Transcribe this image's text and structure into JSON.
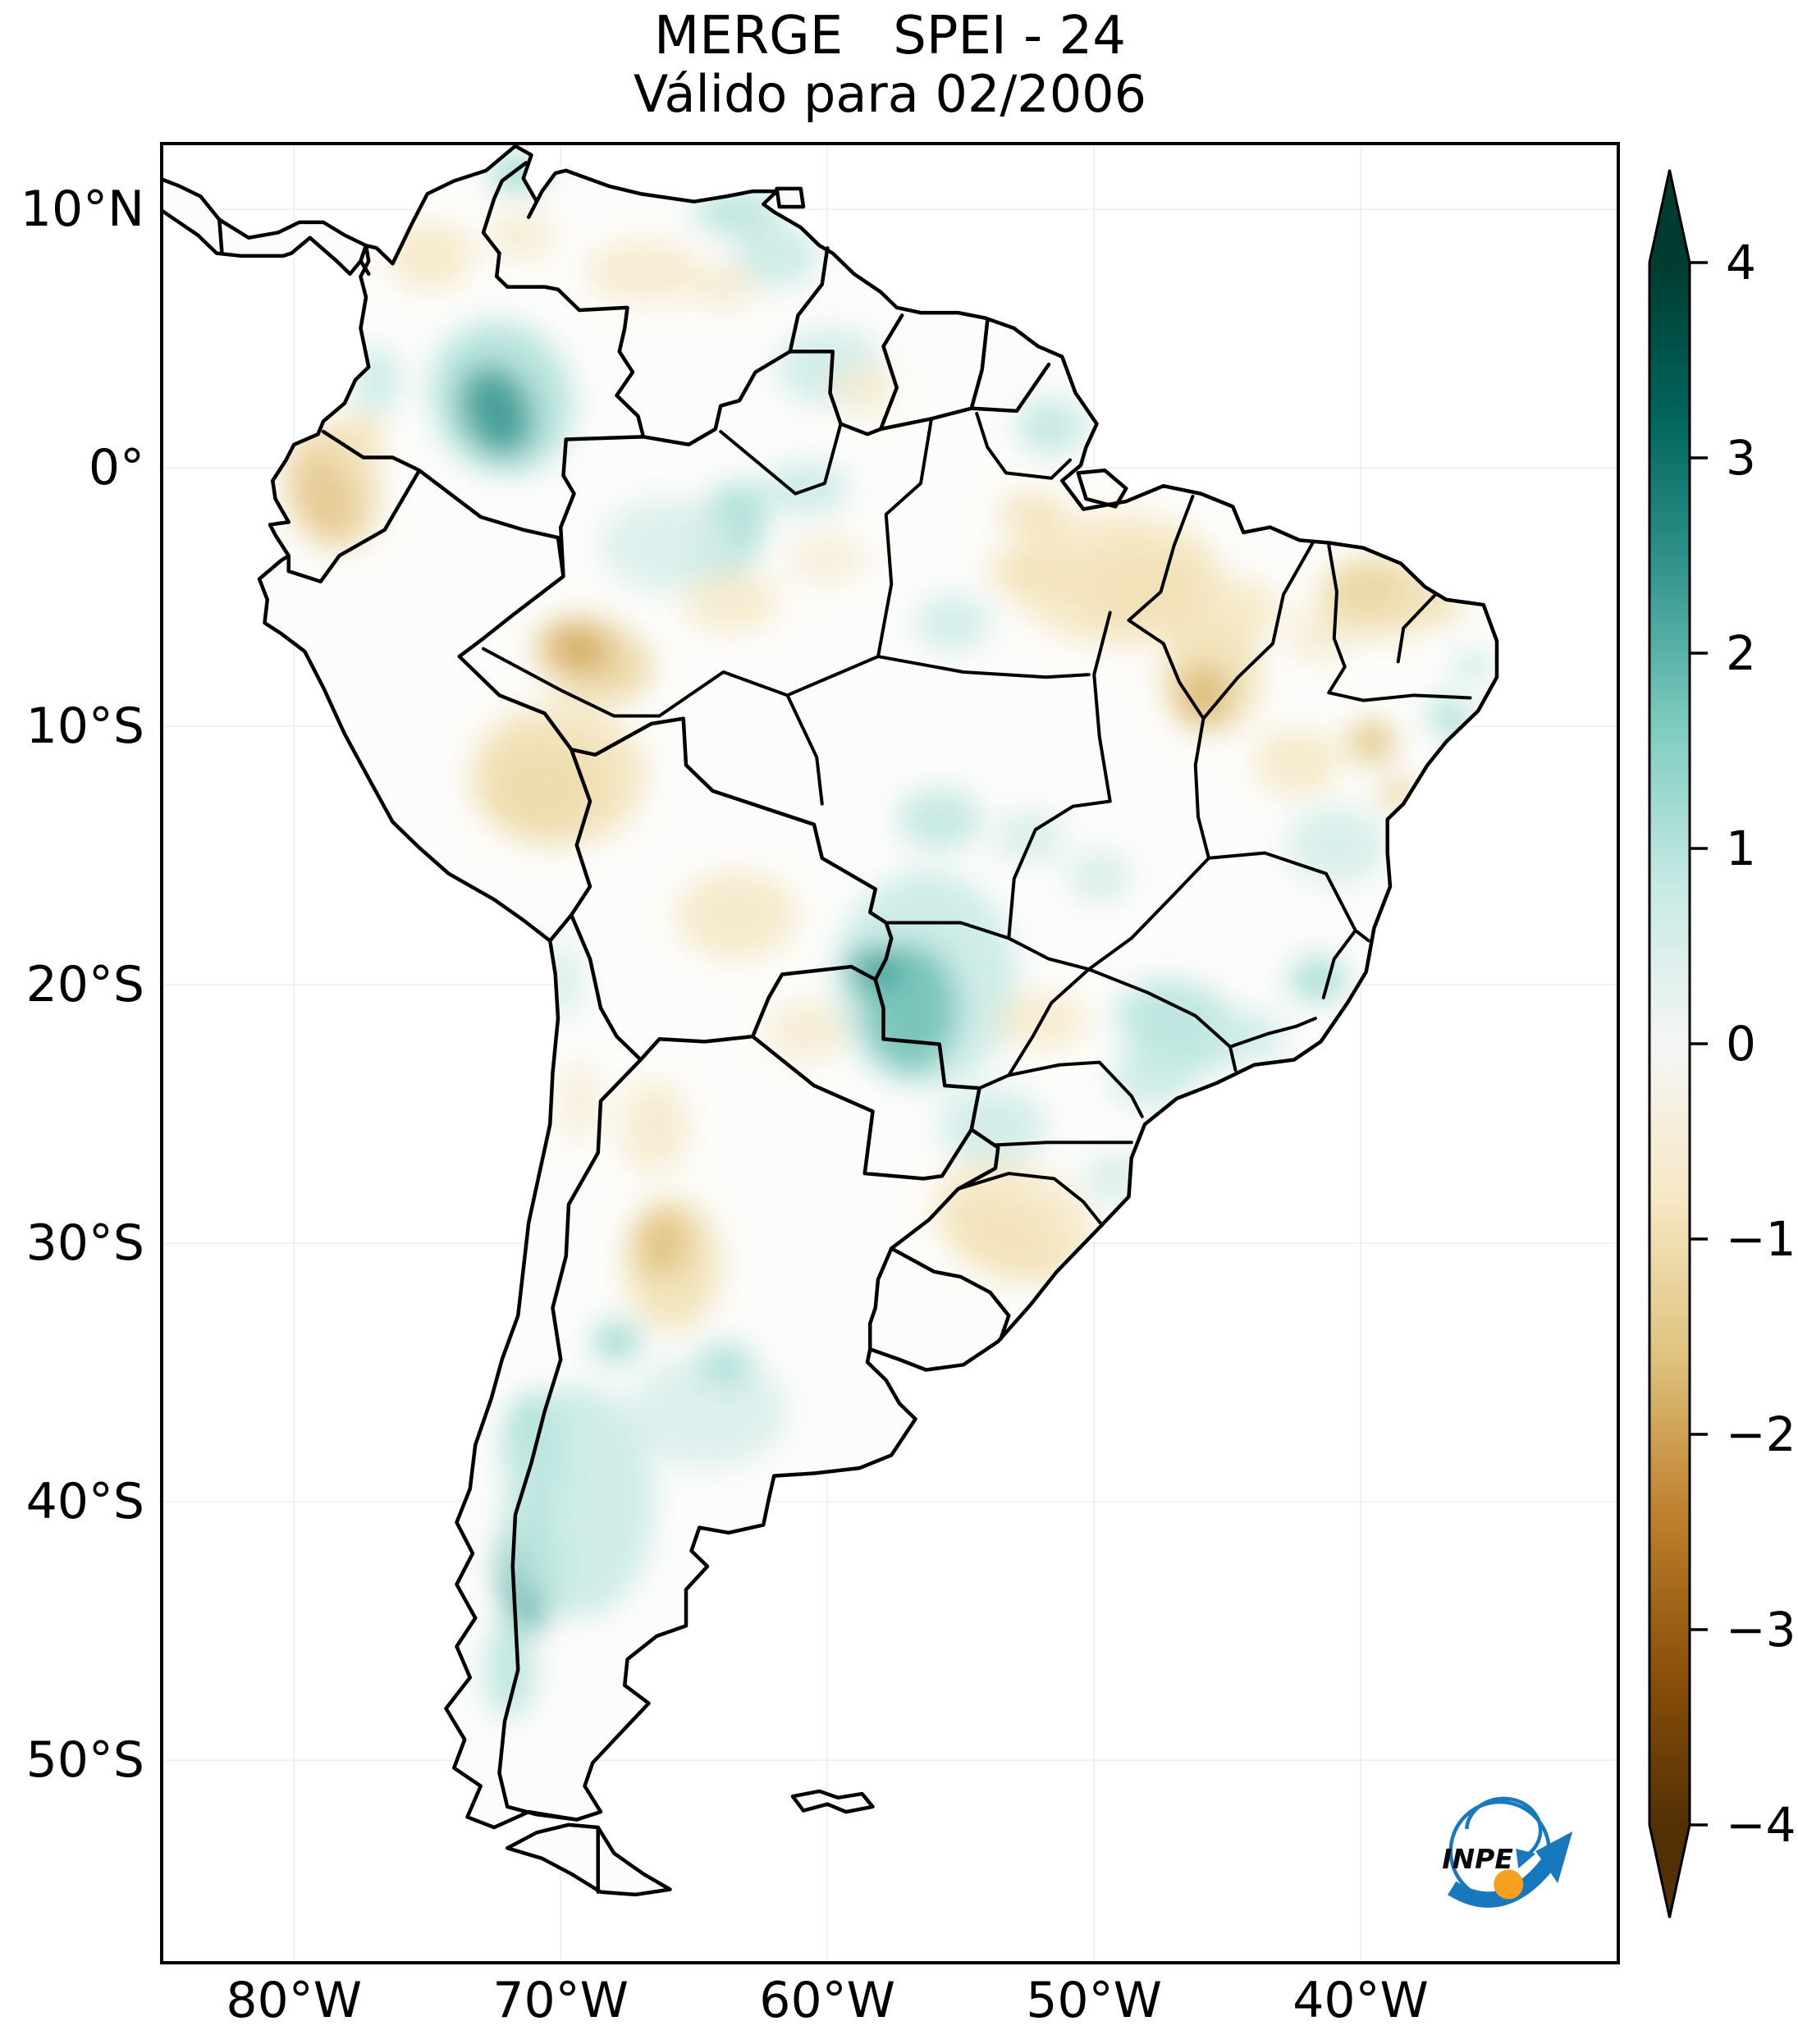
{
  "title": {
    "line1": "MERGE   SPEI - 24",
    "line2": "Válido para 02/2006"
  },
  "axes": {
    "lat_ticks": [
      {
        "label": "10°N",
        "deg": 10
      },
      {
        "label": "0°",
        "deg": 0
      },
      {
        "label": "10°S",
        "deg": -10
      },
      {
        "label": "20°S",
        "deg": -20
      },
      {
        "label": "30°S",
        "deg": -30
      },
      {
        "label": "40°S",
        "deg": -40
      },
      {
        "label": "50°S",
        "deg": -50
      }
    ],
    "lon_ticks": [
      {
        "label": "80°W",
        "deg": -80
      },
      {
        "label": "70°W",
        "deg": -70
      },
      {
        "label": "60°W",
        "deg": -60
      },
      {
        "label": "50°W",
        "deg": -50
      },
      {
        "label": "40°W",
        "deg": -40
      }
    ]
  },
  "colorbar": {
    "vmin": -4,
    "vmax": 4,
    "extend": "both",
    "colormap_name": "BrBG",
    "ticks": [
      {
        "label": "4",
        "value": 4
      },
      {
        "label": "3",
        "value": 3
      },
      {
        "label": "2",
        "value": 2
      },
      {
        "label": "1",
        "value": 1
      },
      {
        "label": "0",
        "value": 0
      },
      {
        "label": "−1",
        "value": -1
      },
      {
        "label": "−2",
        "value": -2
      },
      {
        "label": "−3",
        "value": -3
      },
      {
        "label": "−4",
        "value": -4
      }
    ],
    "stops": [
      {
        "v": -4.0,
        "c": "#543005"
      },
      {
        "v": -3.2,
        "c": "#8c510a"
      },
      {
        "v": -2.4,
        "c": "#bf812d"
      },
      {
        "v": -1.6,
        "c": "#dfc27d"
      },
      {
        "v": -0.8,
        "c": "#f6e8c3"
      },
      {
        "v": 0.0,
        "c": "#f5f5f5"
      },
      {
        "v": 0.8,
        "c": "#c7eae5"
      },
      {
        "v": 1.6,
        "c": "#80cdc1"
      },
      {
        "v": 2.4,
        "c": "#35978f"
      },
      {
        "v": 3.2,
        "c": "#01665e"
      },
      {
        "v": 4.0,
        "c": "#003c30"
      }
    ]
  },
  "logo": {
    "text": "INPE",
    "blue": "#1878be",
    "orange": "#f6a01d"
  },
  "chart_data": {
    "type": "heatmap",
    "product": "MERGE",
    "variable": "SPEI - 24",
    "valid_for": "02/2006",
    "region": "South America",
    "title": "MERGE   SPEI - 24",
    "subtitle": "Válido para 02/2006",
    "colorbar_range": [
      -4,
      4
    ],
    "extent": {
      "lon_min": -84.9,
      "lon_max": -30.4,
      "lat_min": -57.77,
      "lat_max": 12.48
    },
    "grid": true,
    "land_fill": "#fcfcfa",
    "anomalies": {
      "columns": [
        "lon",
        "lat",
        "rx_deg",
        "ry_deg",
        "rot_deg",
        "spei"
      ],
      "points": [
        [
          -71.6,
          11.4,
          1.1,
          0.7,
          0,
          1.3
        ],
        [
          -63.4,
          9.9,
          1.6,
          0.9,
          0,
          1.0
        ],
        [
          -61.9,
          8.2,
          1.6,
          1.2,
          0,
          0.8
        ],
        [
          -72.2,
          2.7,
          2.6,
          3.0,
          20,
          1.1
        ],
        [
          -72.4,
          2.2,
          1.3,
          1.8,
          20,
          2.4
        ],
        [
          -63.8,
          -2.6,
          1.3,
          2.2,
          -25,
          1.2
        ],
        [
          -60.8,
          -0.8,
          1.6,
          1.0,
          0,
          0.8
        ],
        [
          -59.9,
          3.9,
          2.0,
          1.5,
          0,
          0.7
        ],
        [
          -51.6,
          1.6,
          1.3,
          1.1,
          0,
          0.9
        ],
        [
          -56.3,
          -19.8,
          3.4,
          4.2,
          0,
          0.8
        ],
        [
          -56.9,
          -20.9,
          1.8,
          2.5,
          0,
          1.8
        ],
        [
          -58.2,
          -19.4,
          1.1,
          0.9,
          0,
          2.2
        ],
        [
          -55.8,
          -13.6,
          1.6,
          1.2,
          0,
          0.9
        ],
        [
          -52.4,
          -14.3,
          1.3,
          1.0,
          0,
          0.6
        ],
        [
          -46.8,
          -21.6,
          2.4,
          1.7,
          -20,
          1.0
        ],
        [
          -44.3,
          -22.0,
          1.5,
          1.0,
          0,
          0.7
        ],
        [
          -41.6,
          -19.8,
          1.1,
          0.9,
          0,
          1.2
        ],
        [
          -49.8,
          -15.8,
          1.2,
          1.0,
          0,
          0.6
        ],
        [
          -40.9,
          -14.6,
          1.9,
          1.5,
          0,
          0.6
        ],
        [
          -36.6,
          -9.7,
          0.9,
          0.7,
          -40,
          1.2
        ],
        [
          -35.8,
          -7.7,
          0.8,
          0.6,
          0,
          0.8
        ],
        [
          -70.9,
          -38.0,
          1.2,
          2.2,
          0,
          1.5
        ],
        [
          -71.2,
          -42.5,
          1.1,
          2.6,
          0,
          2.0
        ],
        [
          -69.3,
          -40.0,
          2.8,
          4.5,
          0,
          0.8
        ],
        [
          -71.9,
          -46.5,
          0.9,
          1.9,
          0,
          1.0
        ],
        [
          -64.5,
          -36.5,
          3.0,
          2.2,
          0,
          0.5
        ],
        [
          -67.9,
          -33.8,
          0.9,
          0.8,
          0,
          1.3
        ],
        [
          -63.8,
          -34.7,
          1.0,
          0.9,
          0,
          1.1
        ],
        [
          -76.9,
          3.4,
          0.9,
          1.3,
          0,
          0.8
        ],
        [
          -55.3,
          -6.0,
          1.4,
          1.1,
          0,
          0.7
        ],
        [
          -69.9,
          -19.8,
          0.7,
          1.5,
          0,
          0.6
        ],
        [
          -66.0,
          -3.0,
          2.5,
          1.8,
          0,
          0.5
        ],
        [
          -53.8,
          -25.5,
          2.0,
          1.5,
          0,
          0.7
        ],
        [
          -49.0,
          -27.5,
          1.5,
          1.0,
          0,
          0.5
        ],
        [
          -47.8,
          -23.6,
          1.6,
          1.1,
          0,
          0.8
        ],
        [
          -78.9,
          -1.2,
          1.0,
          1.6,
          15,
          -2.2
        ],
        [
          -78.6,
          -0.8,
          1.7,
          2.4,
          15,
          -1.2
        ],
        [
          -77.6,
          1.0,
          1.0,
          1.2,
          0,
          -0.9
        ],
        [
          -74.9,
          8.2,
          1.6,
          1.3,
          0,
          -0.8
        ],
        [
          -66.9,
          7.6,
          2.2,
          1.2,
          0,
          -0.7
        ],
        [
          -63.9,
          7.0,
          1.3,
          0.9,
          0,
          -0.6
        ],
        [
          -71.5,
          9.0,
          1.2,
          1.0,
          0,
          -0.6
        ],
        [
          -70.9,
          -12.7,
          1.5,
          1.3,
          0,
          -2.6
        ],
        [
          -70.7,
          -12.3,
          2.4,
          2.0,
          0,
          -1.6
        ],
        [
          -70.1,
          -11.9,
          3.3,
          2.8,
          0,
          -0.9
        ],
        [
          -68.8,
          -7.4,
          2.3,
          1.6,
          -20,
          -1.2
        ],
        [
          -69.3,
          -7.0,
          1.2,
          0.9,
          -20,
          -1.9
        ],
        [
          -63.6,
          -5.2,
          1.8,
          1.2,
          0,
          -0.7
        ],
        [
          -60.0,
          -3.5,
          1.5,
          1.0,
          0,
          -0.5
        ],
        [
          -47.9,
          -4.9,
          1.6,
          1.1,
          0,
          -2.4
        ],
        [
          -48.3,
          -4.6,
          2.7,
          1.8,
          0,
          -1.4
        ],
        [
          -49.1,
          -4.3,
          4.0,
          2.6,
          0,
          -0.8
        ],
        [
          -52.4,
          -4.0,
          1.6,
          1.0,
          0,
          -0.9
        ],
        [
          -45.6,
          -8.0,
          1.9,
          2.3,
          0,
          -1.0
        ],
        [
          -45.9,
          -8.8,
          1.0,
          1.2,
          0,
          -1.7
        ],
        [
          -44.5,
          -5.5,
          1.5,
          1.2,
          0,
          -0.8
        ],
        [
          -41.5,
          -6.5,
          1.2,
          1.0,
          0,
          -0.6
        ],
        [
          -39.8,
          -4.6,
          1.5,
          1.0,
          0,
          -2.0
        ],
        [
          -39.2,
          -5.0,
          2.4,
          1.6,
          0,
          -1.0
        ],
        [
          -36.9,
          -5.4,
          0.8,
          0.6,
          0,
          -1.0
        ],
        [
          -42.4,
          -11.4,
          1.6,
          1.3,
          0,
          -0.8
        ],
        [
          -39.6,
          -10.6,
          0.9,
          0.8,
          0,
          -1.6
        ],
        [
          -38.6,
          -12.6,
          0.7,
          0.6,
          0,
          -1.3
        ],
        [
          -63.4,
          -17.3,
          2.3,
          1.7,
          0,
          -0.8
        ],
        [
          -60.8,
          -21.8,
          1.5,
          1.2,
          0,
          -0.6
        ],
        [
          -65.8,
          -30.8,
          1.8,
          2.6,
          0,
          -1.0
        ],
        [
          -66.2,
          -30.0,
          1.0,
          1.3,
          0,
          -1.6
        ],
        [
          -66.5,
          -25.5,
          1.3,
          1.8,
          0,
          -0.7
        ],
        [
          -53.4,
          -29.8,
          2.2,
          1.4,
          -25,
          -1.5
        ],
        [
          -53.0,
          -29.2,
          3.2,
          2.2,
          -25,
          -0.8
        ],
        [
          -51.9,
          -21.4,
          1.7,
          1.1,
          0,
          -0.7
        ],
        [
          -52.3,
          -1.8,
          1.3,
          0.9,
          0,
          -0.9
        ],
        [
          -58.6,
          3.0,
          1.2,
          1.0,
          0,
          -0.6
        ],
        [
          -69.3,
          -24.5,
          0.8,
          1.6,
          0,
          -0.5
        ]
      ]
    }
  }
}
